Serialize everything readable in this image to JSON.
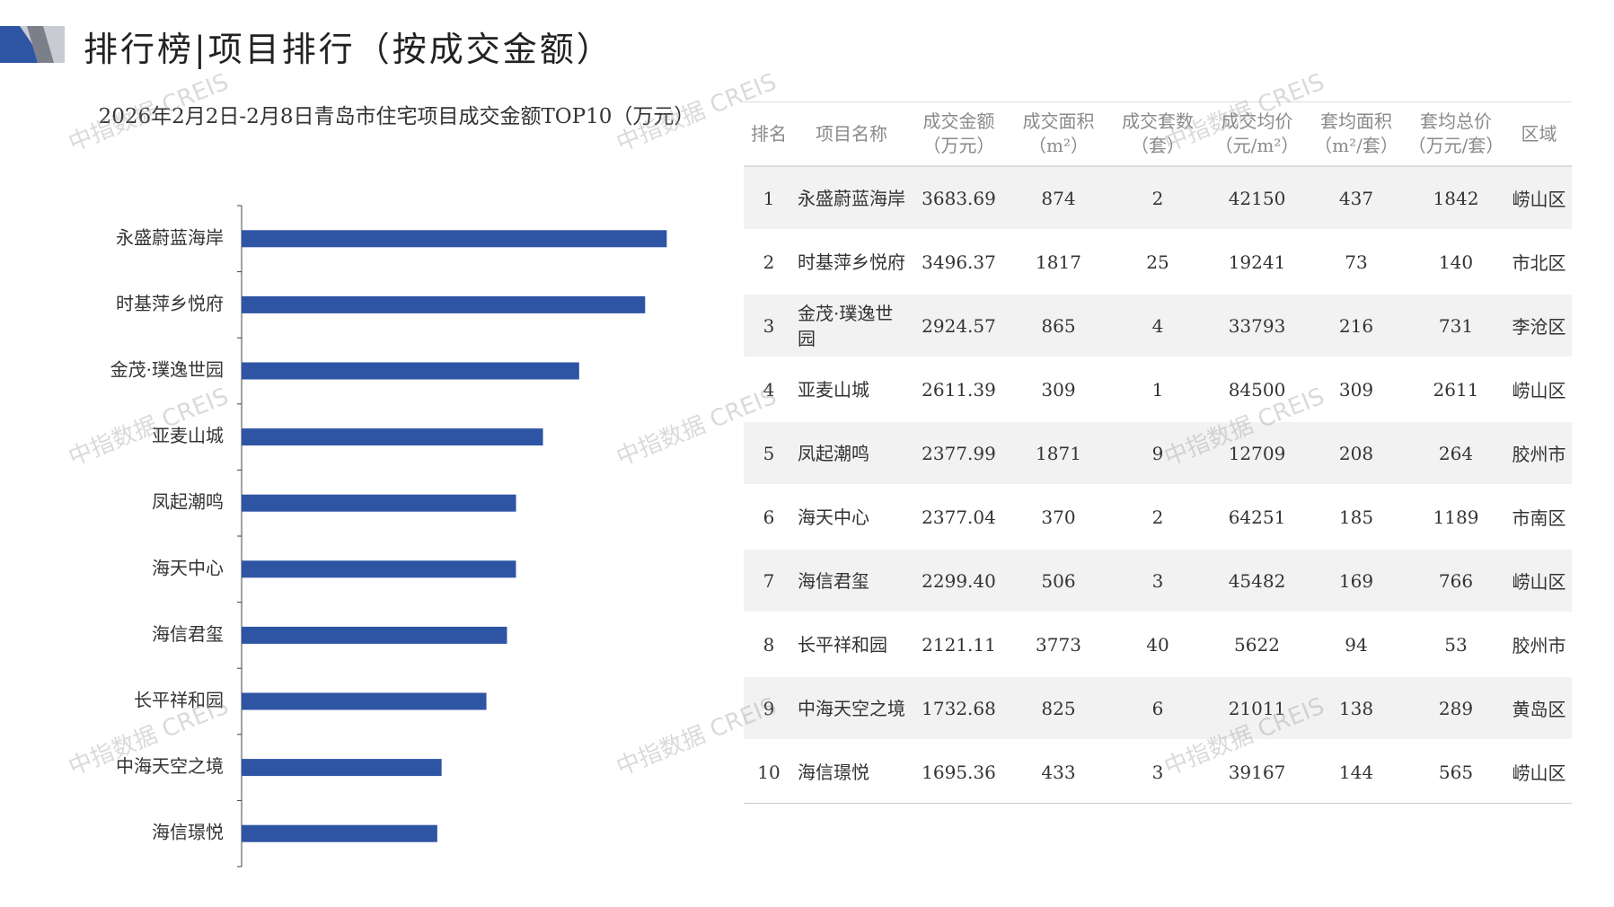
{
  "header": {
    "title": "排行榜|项目排行（按成交金额）"
  },
  "watermark": "中指数据 CREIS",
  "chart_data": {
    "type": "hbar",
    "title": "2026年2月2日-2月8日青岛市住宅项目成交金额TOP10（万元）",
    "categories": [
      "永盛蔚蓝海岸",
      "时基萍乡悦府",
      "金茂·璞逸世园",
      "亚麦山城",
      "凤起潮鸣",
      "海天中心",
      "海信君玺",
      "长平祥和园",
      "中海天空之境",
      "海信璟悦"
    ],
    "values": [
      3683.69,
      3496.37,
      2924.57,
      2611.39,
      2377.99,
      2377.04,
      2299.4,
      2121.11,
      1732.68,
      1695.36
    ],
    "color": "#2e54a4",
    "xlim": [
      0,
      4000
    ]
  },
  "table": {
    "header": [
      "排名",
      "项目名称",
      "成交金额\n（万元）",
      "成交面积\n（m²）",
      "成交套数\n（套）",
      "成交均价\n（元/m²）",
      "套均面积\n（m²/套）",
      "套均总价\n（万元/套）",
      "区域"
    ],
    "rows": [
      [
        "1",
        "永盛蔚蓝海岸",
        "3683.69",
        "874",
        "2",
        "42150",
        "437",
        "1842",
        "崂山区"
      ],
      [
        "2",
        "时基萍乡悦府",
        "3496.37",
        "1817",
        "25",
        "19241",
        "73",
        "140",
        "市北区"
      ],
      [
        "3",
        "金茂·璞逸世园",
        "2924.57",
        "865",
        "4",
        "33793",
        "216",
        "731",
        "李沧区"
      ],
      [
        "4",
        "亚麦山城",
        "2611.39",
        "309",
        "1",
        "84500",
        "309",
        "2611",
        "崂山区"
      ],
      [
        "5",
        "凤起潮鸣",
        "2377.99",
        "1871",
        "9",
        "12709",
        "208",
        "264",
        "胶州市"
      ],
      [
        "6",
        "海天中心",
        "2377.04",
        "370",
        "2",
        "64251",
        "185",
        "1189",
        "市南区"
      ],
      [
        "7",
        "海信君玺",
        "2299.40",
        "506",
        "3",
        "45482",
        "169",
        "766",
        "崂山区"
      ],
      [
        "8",
        "长平祥和园",
        "2121.11",
        "3773",
        "40",
        "5622",
        "94",
        "53",
        "胶州市"
      ],
      [
        "9",
        "中海天空之境",
        "1732.68",
        "825",
        "6",
        "21011",
        "138",
        "289",
        "黄岛区"
      ],
      [
        "10",
        "海信璟悦",
        "1695.36",
        "433",
        "3",
        "39167",
        "144",
        "565",
        "崂山区"
      ]
    ]
  }
}
